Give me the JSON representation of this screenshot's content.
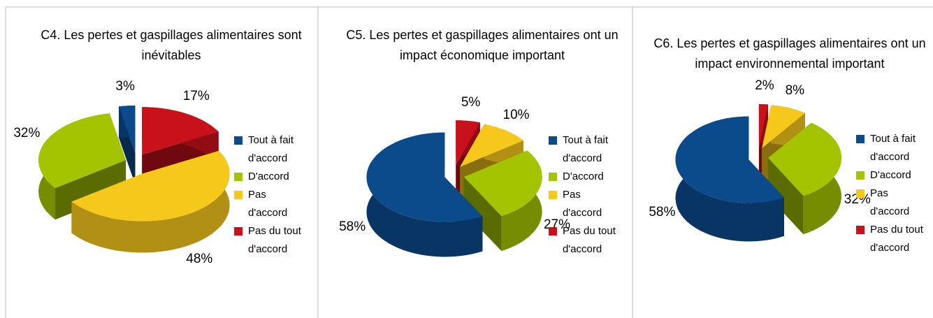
{
  "chart_data": [
    {
      "type": "pie",
      "title": "C4. Les pertes et gaspillages alimentaires sont inévitables",
      "categories": [
        "Tout à fait d'accord",
        "D'accord",
        "Pas d'accord",
        "Pas du tout d'accord"
      ],
      "values": [
        3,
        32,
        48,
        17
      ],
      "value_labels": [
        "3%",
        "32%",
        "48%",
        "17%"
      ],
      "colors": [
        "#0b4a8b",
        "#a4c400",
        "#f7c81c",
        "#c9111b"
      ],
      "legend": "right"
    },
    {
      "type": "pie",
      "title": "C5. Les pertes et gaspillages alimentaires ont un impact économique important",
      "categories": [
        "Tout à fait d'accord",
        "D'accord",
        "Pas d'accord",
        "Pas du tout d'accord"
      ],
      "values": [
        58,
        27,
        10,
        5
      ],
      "value_labels": [
        "58%",
        "27%",
        "10%",
        "5%"
      ],
      "colors": [
        "#0b4a8b",
        "#a4c400",
        "#f7c81c",
        "#c9111b"
      ],
      "legend": "right"
    },
    {
      "type": "pie",
      "title": "C6. Les pertes et gaspillages alimentaires ont un impact environnemental important",
      "categories": [
        "Tout à fait d'accord",
        "D'accord",
        "Pas d'accord",
        "Pas du tout d'accord"
      ],
      "values": [
        58,
        32,
        8,
        2
      ],
      "value_labels": [
        "58%",
        "32%",
        "8%",
        "2%"
      ],
      "colors": [
        "#0b4a8b",
        "#a4c400",
        "#f7c81c",
        "#c9111b"
      ],
      "legend": "right"
    }
  ]
}
